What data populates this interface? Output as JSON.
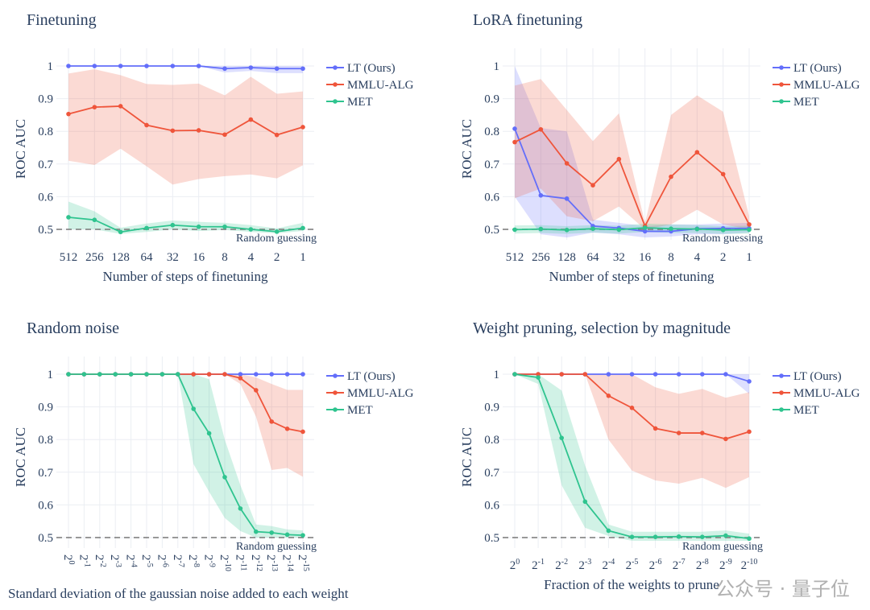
{
  "colors": {
    "LT (Ours)": "#636efa",
    "MMLU-ALG": "#ef553b",
    "MET": "#2fc48f",
    "grid": "#ebeef3",
    "text": "#2a3f5f"
  },
  "watermark": "公众号 · 量子位",
  "chart_data": [
    {
      "type": "line",
      "title": "Finetuning",
      "xlabel": "Number of steps of finetuning",
      "ylabel": "ROC AUC",
      "x": [
        "512",
        "256",
        "128",
        "64",
        "32",
        "16",
        "8",
        "4",
        "2",
        "1"
      ],
      "ylim": [
        0.5,
        1
      ],
      "yticks": [
        "0.5",
        "0.6",
        "0.7",
        "0.8",
        "0.9",
        "1"
      ],
      "baseline": {
        "value": 0.5,
        "label": "Random guessing"
      },
      "legend_position": "right",
      "series": [
        {
          "name": "LT (Ours)",
          "values": [
            1,
            1,
            1,
            1,
            1,
            1,
            0.992,
            0.995,
            0.992,
            0.992
          ],
          "upper": [
            1,
            1,
            1,
            1,
            1,
            1,
            1,
            1,
            1,
            1
          ],
          "lower": [
            1,
            1,
            1,
            1,
            1,
            1,
            0.98,
            0.985,
            0.978,
            0.978
          ]
        },
        {
          "name": "MMLU-ALG",
          "values": [
            0.853,
            0.874,
            0.877,
            0.819,
            0.802,
            0.803,
            0.79,
            0.836,
            0.789,
            0.813
          ],
          "upper": [
            0.977,
            0.99,
            0.972,
            0.945,
            0.942,
            0.946,
            0.91,
            0.967,
            0.915,
            0.922
          ],
          "lower": [
            0.71,
            0.697,
            0.747,
            0.693,
            0.637,
            0.654,
            0.663,
            0.668,
            0.656,
            0.696
          ]
        },
        {
          "name": "MET",
          "values": [
            0.537,
            0.529,
            0.492,
            0.504,
            0.513,
            0.508,
            0.508,
            0.5,
            0.493,
            0.504
          ],
          "upper": [
            0.585,
            0.555,
            0.505,
            0.518,
            0.527,
            0.523,
            0.52,
            0.513,
            0.503,
            0.52
          ],
          "lower": [
            0.5,
            0.5,
            0.486,
            0.492,
            0.5,
            0.495,
            0.498,
            0.492,
            0.488,
            0.495
          ]
        }
      ]
    },
    {
      "type": "line",
      "title": "LoRA finetuning",
      "xlabel": "Number of steps of finetuning",
      "ylabel": "ROC AUC",
      "x": [
        "512",
        "256",
        "128",
        "64",
        "32",
        "16",
        "8",
        "4",
        "2",
        "1"
      ],
      "ylim": [
        0.5,
        1
      ],
      "yticks": [
        "0.5",
        "0.6",
        "0.7",
        "0.8",
        "0.9",
        "1"
      ],
      "baseline": {
        "value": 0.5,
        "label": "Random guessing"
      },
      "legend_position": "right",
      "series": [
        {
          "name": "LT (Ours)",
          "values": [
            0.808,
            0.604,
            0.594,
            0.51,
            0.504,
            0.494,
            0.494,
            0.502,
            0.503,
            0.503
          ],
          "upper": [
            1,
            0.81,
            0.8,
            0.53,
            0.52,
            0.51,
            0.515,
            0.515,
            0.518,
            0.52
          ],
          "lower": [
            0.6,
            0.485,
            0.475,
            0.49,
            0.485,
            0.475,
            0.478,
            0.485,
            0.485,
            0.49
          ]
        },
        {
          "name": "MMLU-ALG",
          "values": [
            0.767,
            0.806,
            0.702,
            0.635,
            0.715,
            0.51,
            0.661,
            0.736,
            0.669,
            0.515
          ],
          "upper": [
            0.94,
            0.96,
            0.865,
            0.77,
            0.855,
            0.52,
            0.85,
            0.91,
            0.86,
            0.54
          ],
          "lower": [
            0.595,
            0.625,
            0.54,
            0.525,
            0.57,
            0.5,
            0.515,
            0.56,
            0.515,
            0.5
          ]
        },
        {
          "name": "MET",
          "values": [
            0.499,
            0.501,
            0.498,
            0.502,
            0.499,
            0.505,
            0.502,
            0.501,
            0.498,
            0.499
          ],
          "upper": [
            0.512,
            0.513,
            0.51,
            0.513,
            0.511,
            0.518,
            0.515,
            0.513,
            0.51,
            0.511
          ],
          "lower": [
            0.487,
            0.489,
            0.486,
            0.49,
            0.487,
            0.492,
            0.489,
            0.489,
            0.486,
            0.487
          ]
        }
      ]
    },
    {
      "type": "line",
      "title": "Random noise",
      "xlabel": "Standard deviation of the gaussian noise added to each weight",
      "ylabel": "ROC AUC",
      "x": [
        "2^0",
        "2^-1",
        "2^-2",
        "2^-3",
        "2^-4",
        "2^-5",
        "2^-6",
        "2^-7",
        "2^-8",
        "2^-9",
        "2^-10",
        "2^-11",
        "2^-12",
        "2^-13",
        "2^-14",
        "2^-15"
      ],
      "x_tick_rotation": 90,
      "ylim": [
        0.5,
        1
      ],
      "yticks": [
        "0.5",
        "0.6",
        "0.7",
        "0.8",
        "0.9",
        "1"
      ],
      "baseline": {
        "value": 0.5,
        "label": "Random guessing"
      },
      "legend_position": "right",
      "series": [
        {
          "name": "LT (Ours)",
          "values": [
            1,
            1,
            1,
            1,
            1,
            1,
            1,
            1,
            1,
            1,
            1,
            1,
            1,
            1,
            1,
            1
          ],
          "upper": [
            1,
            1,
            1,
            1,
            1,
            1,
            1,
            1,
            1,
            1,
            1,
            1,
            1,
            1,
            1,
            1
          ],
          "lower": [
            1,
            1,
            1,
            1,
            1,
            1,
            1,
            1,
            1,
            1,
            1,
            1,
            1,
            1,
            1,
            1
          ]
        },
        {
          "name": "MMLU-ALG",
          "values": [
            1,
            1,
            1,
            1,
            1,
            1,
            1,
            1,
            1,
            1,
            1,
            0.988,
            0.951,
            0.855,
            0.833,
            0.824
          ],
          "upper": [
            1,
            1,
            1,
            1,
            1,
            1,
            1,
            1,
            1,
            1,
            1,
            1,
            0.99,
            0.97,
            0.952,
            0.952
          ],
          "lower": [
            1,
            1,
            1,
            1,
            1,
            1,
            1,
            1,
            1,
            1,
            1,
            0.97,
            0.87,
            0.707,
            0.713,
            0.686
          ]
        },
        {
          "name": "MET",
          "values": [
            1,
            1,
            1,
            1,
            1,
            1,
            1,
            1,
            0.894,
            0.819,
            0.685,
            0.589,
            0.518,
            0.515,
            0.509,
            0.507
          ],
          "upper": [
            1,
            1,
            1,
            1,
            1,
            1,
            1,
            1,
            1,
            0.985,
            0.8,
            0.66,
            0.54,
            0.535,
            0.525,
            0.522
          ],
          "lower": [
            1,
            1,
            1,
            1,
            1,
            1,
            1,
            1,
            0.725,
            0.64,
            0.56,
            0.52,
            0.5,
            0.5,
            0.5,
            0.5
          ]
        }
      ]
    },
    {
      "type": "line",
      "title": "Weight pruning, selection by magnitude",
      "xlabel": "Fraction of the weights to prune",
      "ylabel": "ROC AUC",
      "x": [
        "2^0",
        "2^-1",
        "2^-2",
        "2^-3",
        "2^-4",
        "2^-5",
        "2^-6",
        "2^-7",
        "2^-8",
        "2^-9",
        "2^-10"
      ],
      "ylim": [
        0.5,
        1
      ],
      "yticks": [
        "0.5",
        "0.6",
        "0.7",
        "0.8",
        "0.9",
        "1"
      ],
      "baseline": {
        "value": 0.5,
        "label": "Random guessing"
      },
      "legend_position": "right",
      "series": [
        {
          "name": "LT (Ours)",
          "values": [
            1,
            1,
            1,
            1,
            1,
            1,
            1,
            1,
            1,
            1,
            0.978
          ],
          "upper": [
            1,
            1,
            1,
            1,
            1,
            1,
            1,
            1,
            1,
            1,
            1
          ],
          "lower": [
            1,
            1,
            1,
            1,
            1,
            1,
            1,
            1,
            1,
            1,
            0.94
          ]
        },
        {
          "name": "MMLU-ALG",
          "values": [
            1,
            1,
            1,
            1,
            0.934,
            0.897,
            0.834,
            0.82,
            0.82,
            0.802,
            0.824
          ],
          "upper": [
            1,
            1,
            1,
            1,
            1,
            1,
            0.96,
            0.94,
            0.955,
            0.928,
            0.945
          ],
          "lower": [
            1,
            1,
            1,
            1,
            0.8,
            0.705,
            0.675,
            0.665,
            0.683,
            0.652,
            0.685
          ]
        },
        {
          "name": "MET",
          "values": [
            1,
            0.99,
            0.805,
            0.61,
            0.521,
            0.502,
            0.502,
            0.503,
            0.502,
            0.506,
            0.497
          ],
          "upper": [
            1,
            1,
            0.95,
            0.72,
            0.54,
            0.518,
            0.518,
            0.518,
            0.518,
            0.522,
            0.512
          ],
          "lower": [
            1,
            0.97,
            0.66,
            0.53,
            0.505,
            0.49,
            0.49,
            0.49,
            0.49,
            0.49,
            0.49
          ]
        }
      ]
    }
  ]
}
